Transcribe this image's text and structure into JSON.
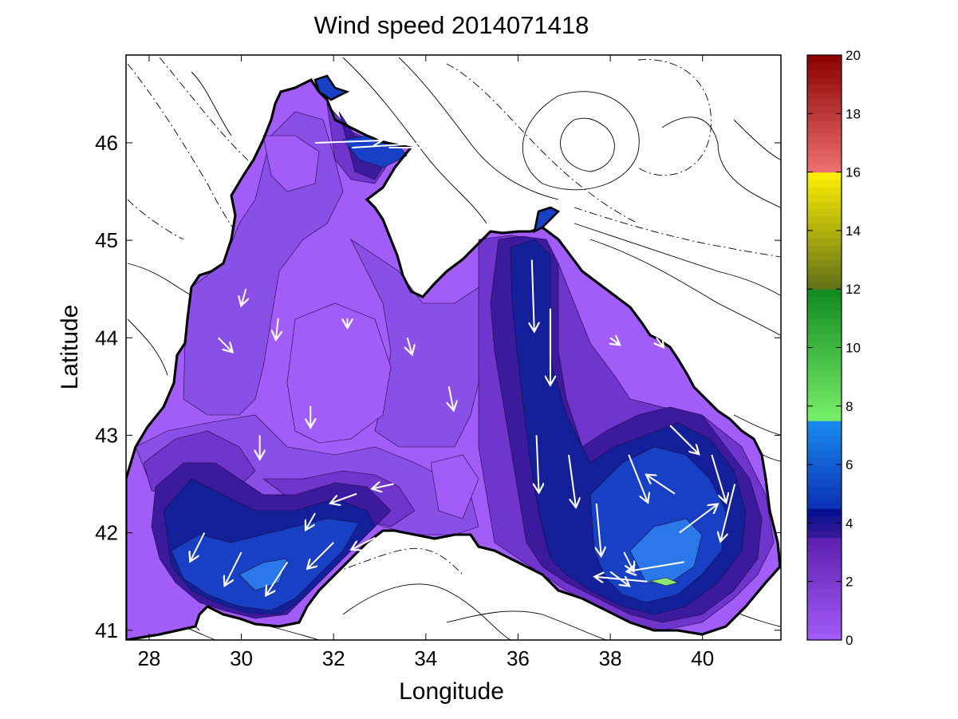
{
  "chart_data": {
    "type": "heatmap",
    "title": "Wind speed 2014071418",
    "xlabel": "Longitude",
    "ylabel": "Latitude",
    "xlim": [
      27.5,
      41.7
    ],
    "ylim": [
      40.9,
      46.9
    ],
    "xticks": [
      28,
      30,
      32,
      34,
      36,
      38,
      40
    ],
    "yticks": [
      41,
      42,
      43,
      44,
      45,
      46
    ],
    "grid": false,
    "colorbar": {
      "range": [
        0,
        20
      ],
      "ticks": [
        0,
        2,
        4,
        6,
        8,
        10,
        12,
        14,
        16,
        18,
        20
      ],
      "bands": [
        {
          "from": 0,
          "to": 3.5,
          "color_start": "#a25cf7",
          "color_end": "#5d1fb0"
        },
        {
          "from": 3.5,
          "to": 4.5,
          "color_start": "#3a1a9a",
          "color_end": "#00108f"
        },
        {
          "from": 4.5,
          "to": 7.5,
          "color_start": "#0a2fb4",
          "color_end": "#1a8cf0"
        },
        {
          "from": 7.5,
          "to": 12,
          "color_start": "#78f06a",
          "color_end": "#108a20"
        },
        {
          "from": 12,
          "to": 16,
          "color_start": "#607018",
          "color_end": "#fff000"
        },
        {
          "from": 16,
          "to": 20,
          "color_start": "#f07070",
          "color_end": "#8a0000"
        }
      ]
    },
    "contour_fill": [
      {
        "level": "0-1",
        "color": "#a25cf7"
      },
      {
        "level": "1-2",
        "color": "#8a4fe6"
      },
      {
        "level": "2-3",
        "color": "#6f35cc"
      },
      {
        "level": "3-4",
        "color": "#3c1a9e"
      },
      {
        "level": "4-5",
        "color": "#13209a"
      },
      {
        "level": "5-6",
        "color": "#1740c4"
      },
      {
        "level": "6-7",
        "color": "#2a78ea"
      },
      {
        "level": "8-9",
        "color": "#8ee870"
      }
    ],
    "wind_vectors": [
      {
        "lon": 31.6,
        "lat": 46.0,
        "u": 1.4,
        "v": 0.05
      },
      {
        "lon": 32.4,
        "lat": 45.95,
        "u": 1.6,
        "v": 0.1
      },
      {
        "lon": 33.2,
        "lat": 45.95,
        "u": 1.3,
        "v": 0.0
      },
      {
        "lon": 29.5,
        "lat": 44.0,
        "u": 0.3,
        "v": -0.3
      },
      {
        "lon": 30.1,
        "lat": 44.5,
        "u": -0.1,
        "v": -0.35
      },
      {
        "lon": 30.8,
        "lat": 44.2,
        "u": -0.05,
        "v": -0.45
      },
      {
        "lon": 30.4,
        "lat": 43.0,
        "u": 0.0,
        "v": -0.5
      },
      {
        "lon": 31.5,
        "lat": 43.3,
        "u": 0.0,
        "v": -0.45
      },
      {
        "lon": 32.3,
        "lat": 44.2,
        "u": 0.0,
        "v": -0.2
      },
      {
        "lon": 33.6,
        "lat": 44.0,
        "u": 0.1,
        "v": -0.35
      },
      {
        "lon": 34.5,
        "lat": 43.5,
        "u": 0.1,
        "v": -0.5
      },
      {
        "lon": 33.3,
        "lat": 42.5,
        "u": -0.45,
        "v": -0.1
      },
      {
        "lon": 32.5,
        "lat": 42.4,
        "u": -0.55,
        "v": -0.2
      },
      {
        "lon": 31.6,
        "lat": 42.2,
        "u": -0.2,
        "v": -0.35
      },
      {
        "lon": 29.2,
        "lat": 42.0,
        "u": -0.3,
        "v": -0.6
      },
      {
        "lon": 30.0,
        "lat": 41.8,
        "u": -0.35,
        "v": -0.7
      },
      {
        "lon": 31.0,
        "lat": 41.7,
        "u": -0.45,
        "v": -0.7
      },
      {
        "lon": 32.0,
        "lat": 41.9,
        "u": -0.55,
        "v": -0.55
      },
      {
        "lon": 32.9,
        "lat": 41.95,
        "u": -0.5,
        "v": -0.25
      },
      {
        "lon": 36.3,
        "lat": 44.8,
        "u": 0.05,
        "v": -1.5
      },
      {
        "lon": 36.7,
        "lat": 44.3,
        "u": 0.0,
        "v": -1.6
      },
      {
        "lon": 36.4,
        "lat": 43.0,
        "u": 0.05,
        "v": -1.2
      },
      {
        "lon": 37.1,
        "lat": 42.8,
        "u": 0.15,
        "v": -1.1
      },
      {
        "lon": 37.7,
        "lat": 42.3,
        "u": 0.1,
        "v": -1.1
      },
      {
        "lon": 38.4,
        "lat": 42.8,
        "u": 0.4,
        "v": -1.0
      },
      {
        "lon": 38.3,
        "lat": 41.8,
        "u": 0.2,
        "v": -0.4
      },
      {
        "lon": 39.4,
        "lat": 42.4,
        "u": -0.6,
        "v": 0.4
      },
      {
        "lon": 39.3,
        "lat": 43.1,
        "u": 0.6,
        "v": -0.6
      },
      {
        "lon": 40.2,
        "lat": 42.8,
        "u": 0.3,
        "v": -1.0
      },
      {
        "lon": 40.7,
        "lat": 42.5,
        "u": -0.3,
        "v": -1.2
      },
      {
        "lon": 39.6,
        "lat": 41.7,
        "u": -1.2,
        "v": -0.2
      },
      {
        "lon": 38.8,
        "lat": 41.5,
        "u": -1.1,
        "v": 0.1
      },
      {
        "lon": 38.0,
        "lat": 44.0,
        "u": 0.2,
        "v": -0.15
      },
      {
        "lon": 39.0,
        "lat": 44.0,
        "u": 0.15,
        "v": -0.2
      },
      {
        "lon": 39.5,
        "lat": 42.0,
        "u": 0.8,
        "v": 0.6
      },
      {
        "lon": 38.0,
        "lat": 41.6,
        "u": 0.4,
        "v": -0.3
      }
    ]
  }
}
